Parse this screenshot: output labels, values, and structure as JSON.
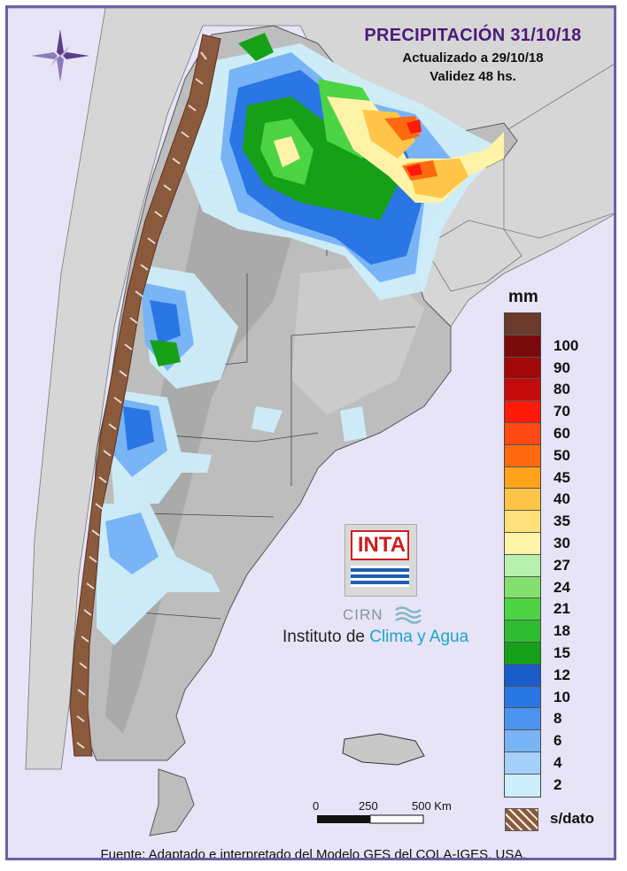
{
  "header": {
    "title": "PRECIPITACIÓN 31/10/18",
    "updated": "Actualizado a 29/10/18",
    "validity": "Validez 48 hs."
  },
  "legend": {
    "unit": "mm",
    "levels": [
      {
        "label": "",
        "color": "#6b3a2a"
      },
      {
        "label": "100",
        "color": "#7a0a0a"
      },
      {
        "label": "90",
        "color": "#a10808"
      },
      {
        "label": "80",
        "color": "#c40a0a"
      },
      {
        "label": "70",
        "color": "#ff1a0a"
      },
      {
        "label": "60",
        "color": "#ff4a14"
      },
      {
        "label": "50",
        "color": "#ff6a10"
      },
      {
        "label": "45",
        "color": "#ffa41a"
      },
      {
        "label": "40",
        "color": "#ffc548"
      },
      {
        "label": "35",
        "color": "#ffe07a"
      },
      {
        "label": "30",
        "color": "#fff3a8"
      },
      {
        "label": "27",
        "color": "#b8f0b0"
      },
      {
        "label": "24",
        "color": "#84e06c"
      },
      {
        "label": "21",
        "color": "#4cd444"
      },
      {
        "label": "18",
        "color": "#30bc30"
      },
      {
        "label": "15",
        "color": "#16a018"
      },
      {
        "label": "12",
        "color": "#1a5cc8"
      },
      {
        "label": "10",
        "color": "#2a76e4"
      },
      {
        "label": "8",
        "color": "#4c94f0"
      },
      {
        "label": "6",
        "color": "#78b4f6"
      },
      {
        "label": "4",
        "color": "#a4d0fa"
      },
      {
        "label": "2",
        "color": "#cdeefa"
      }
    ],
    "nodata_label": "s/dato",
    "nodata_color": "#8b5a3c"
  },
  "scale_bar": {
    "labels": [
      "0",
      "250",
      "500 Km"
    ]
  },
  "logo": {
    "inta": "INTA",
    "cirn": "CIRN",
    "institute_prefix": "Instituto de ",
    "institute_accent": "Clima y Agua"
  },
  "footer": {
    "source": "Fuente: Adaptado e interpretado del Modelo GFS del COLA-IGES, USA."
  },
  "colors": {
    "frame": "#6b5fa8",
    "background": "#e6e4f6",
    "title": "#4b1a7a",
    "land": "#bdbdbd",
    "neighbor_land": "#d6d6d6"
  }
}
